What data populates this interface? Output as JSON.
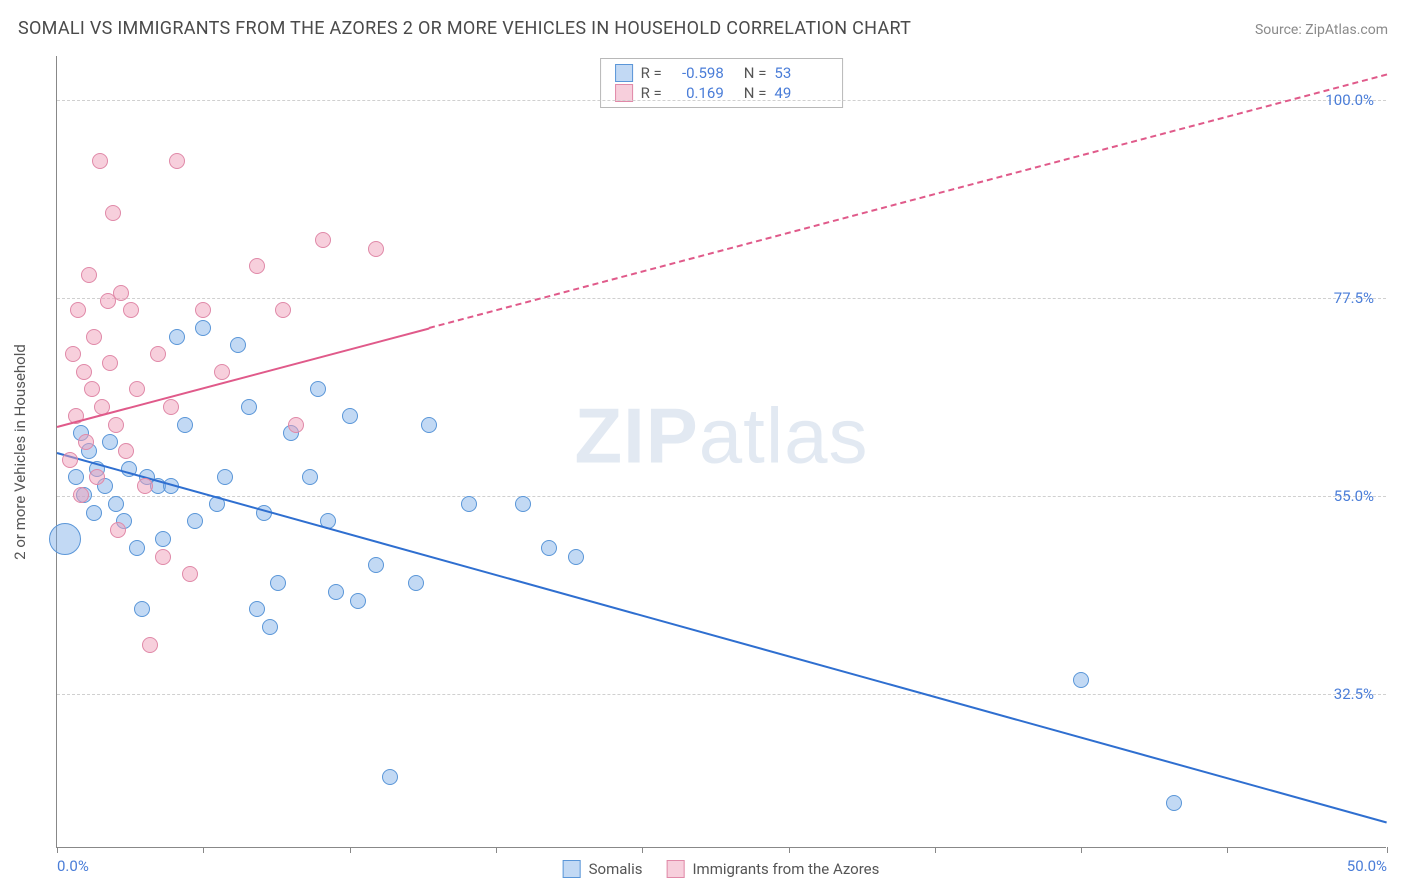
{
  "title": "SOMALI VS IMMIGRANTS FROM THE AZORES 2 OR MORE VEHICLES IN HOUSEHOLD CORRELATION CHART",
  "source": "Source: ZipAtlas.com",
  "watermark_a": "ZIP",
  "watermark_b": "atlas",
  "y_axis_label": "2 or more Vehicles in Household",
  "chart": {
    "type": "scatter",
    "xlim": [
      0,
      50
    ],
    "ylim": [
      15,
      105
    ],
    "background": "#ffffff",
    "grid_color": "#d0d0d0",
    "y_ticks": [
      {
        "v": 32.5,
        "label": "32.5%"
      },
      {
        "v": 55.0,
        "label": "55.0%"
      },
      {
        "v": 77.5,
        "label": "77.5%"
      },
      {
        "v": 100.0,
        "label": "100.0%"
      }
    ],
    "x_tick_values": [
      0,
      5.5,
      11,
      16.5,
      22,
      27.5,
      33,
      38.5,
      44,
      50
    ],
    "x_labels": [
      {
        "v": 0,
        "label": "0.0%"
      },
      {
        "v": 50,
        "label": "50.0%"
      }
    ],
    "series": [
      {
        "name": "Somalis",
        "fill": "rgba(120,170,230,0.45)",
        "stroke": "#5a96d8",
        "trend_color": "#2f6fd0",
        "r_value": "-0.598",
        "n_value": "53",
        "trend": {
          "x1": 0,
          "y1": 60,
          "x2": 50,
          "y2": 18
        },
        "points": [
          {
            "x": 0.3,
            "y": 50,
            "r": 16
          },
          {
            "x": 0.7,
            "y": 57,
            "r": 8
          },
          {
            "x": 0.9,
            "y": 62,
            "r": 8
          },
          {
            "x": 1.0,
            "y": 55,
            "r": 8
          },
          {
            "x": 1.2,
            "y": 60,
            "r": 8
          },
          {
            "x": 1.4,
            "y": 53,
            "r": 8
          },
          {
            "x": 1.5,
            "y": 58,
            "r": 8
          },
          {
            "x": 1.8,
            "y": 56,
            "r": 8
          },
          {
            "x": 2.0,
            "y": 61,
            "r": 8
          },
          {
            "x": 2.2,
            "y": 54,
            "r": 8
          },
          {
            "x": 2.5,
            "y": 52,
            "r": 8
          },
          {
            "x": 2.7,
            "y": 58,
            "r": 8
          },
          {
            "x": 3.0,
            "y": 49,
            "r": 8
          },
          {
            "x": 3.2,
            "y": 42,
            "r": 8
          },
          {
            "x": 3.4,
            "y": 57,
            "r": 8
          },
          {
            "x": 3.8,
            "y": 56,
            "r": 8
          },
          {
            "x": 4.0,
            "y": 50,
            "r": 8
          },
          {
            "x": 4.3,
            "y": 56,
            "r": 8
          },
          {
            "x": 4.5,
            "y": 73,
            "r": 8
          },
          {
            "x": 4.8,
            "y": 63,
            "r": 8
          },
          {
            "x": 5.2,
            "y": 52,
            "r": 8
          },
          {
            "x": 5.5,
            "y": 74,
            "r": 8
          },
          {
            "x": 6.0,
            "y": 54,
            "r": 8
          },
          {
            "x": 6.3,
            "y": 57,
            "r": 8
          },
          {
            "x": 6.8,
            "y": 72,
            "r": 8
          },
          {
            "x": 7.2,
            "y": 65,
            "r": 8
          },
          {
            "x": 7.5,
            "y": 42,
            "r": 8
          },
          {
            "x": 7.8,
            "y": 53,
            "r": 8
          },
          {
            "x": 8.0,
            "y": 40,
            "r": 8
          },
          {
            "x": 8.3,
            "y": 45,
            "r": 8
          },
          {
            "x": 8.8,
            "y": 62,
            "r": 8
          },
          {
            "x": 9.5,
            "y": 57,
            "r": 8
          },
          {
            "x": 9.8,
            "y": 67,
            "r": 8
          },
          {
            "x": 10.2,
            "y": 52,
            "r": 8
          },
          {
            "x": 10.5,
            "y": 44,
            "r": 8
          },
          {
            "x": 11.0,
            "y": 64,
            "r": 8
          },
          {
            "x": 11.3,
            "y": 43,
            "r": 8
          },
          {
            "x": 12.0,
            "y": 47,
            "r": 8
          },
          {
            "x": 12.5,
            "y": 23,
            "r": 8
          },
          {
            "x": 13.5,
            "y": 45,
            "r": 8
          },
          {
            "x": 14.0,
            "y": 63,
            "r": 8
          },
          {
            "x": 15.5,
            "y": 54,
            "r": 8
          },
          {
            "x": 17.5,
            "y": 54,
            "r": 8
          },
          {
            "x": 18.5,
            "y": 49,
            "r": 8
          },
          {
            "x": 19.5,
            "y": 48,
            "r": 8
          },
          {
            "x": 38.5,
            "y": 34,
            "r": 8
          },
          {
            "x": 42.0,
            "y": 20,
            "r": 8
          }
        ]
      },
      {
        "name": "Immigrants from the Azores",
        "fill": "rgba(240,160,185,0.5)",
        "stroke": "#e089a8",
        "trend_color": "#e05a8a",
        "r_value": "0.169",
        "n_value": "49",
        "trend": {
          "x1": 0,
          "y1": 63,
          "x2": 50,
          "y2": 103
        },
        "trend_dash_split_x": 14,
        "points": [
          {
            "x": 0.5,
            "y": 59,
            "r": 8
          },
          {
            "x": 0.6,
            "y": 71,
            "r": 8
          },
          {
            "x": 0.7,
            "y": 64,
            "r": 8
          },
          {
            "x": 0.8,
            "y": 76,
            "r": 8
          },
          {
            "x": 0.9,
            "y": 55,
            "r": 8
          },
          {
            "x": 1.0,
            "y": 69,
            "r": 8
          },
          {
            "x": 1.1,
            "y": 61,
            "r": 8
          },
          {
            "x": 1.2,
            "y": 80,
            "r": 8
          },
          {
            "x": 1.3,
            "y": 67,
            "r": 8
          },
          {
            "x": 1.4,
            "y": 73,
            "r": 8
          },
          {
            "x": 1.5,
            "y": 57,
            "r": 8
          },
          {
            "x": 1.6,
            "y": 93,
            "r": 8
          },
          {
            "x": 1.7,
            "y": 65,
            "r": 8
          },
          {
            "x": 1.9,
            "y": 77,
            "r": 8
          },
          {
            "x": 2.0,
            "y": 70,
            "r": 8
          },
          {
            "x": 2.1,
            "y": 87,
            "r": 8
          },
          {
            "x": 2.2,
            "y": 63,
            "r": 8
          },
          {
            "x": 2.3,
            "y": 51,
            "r": 8
          },
          {
            "x": 2.4,
            "y": 78,
            "r": 8
          },
          {
            "x": 2.6,
            "y": 60,
            "r": 8
          },
          {
            "x": 2.8,
            "y": 76,
            "r": 8
          },
          {
            "x": 3.0,
            "y": 67,
            "r": 8
          },
          {
            "x": 3.3,
            "y": 56,
            "r": 8
          },
          {
            "x": 3.5,
            "y": 38,
            "r": 8
          },
          {
            "x": 3.8,
            "y": 71,
            "r": 8
          },
          {
            "x": 4.0,
            "y": 48,
            "r": 8
          },
          {
            "x": 4.3,
            "y": 65,
            "r": 8
          },
          {
            "x": 4.5,
            "y": 93,
            "r": 8
          },
          {
            "x": 5.0,
            "y": 46,
            "r": 8
          },
          {
            "x": 5.5,
            "y": 76,
            "r": 8
          },
          {
            "x": 6.2,
            "y": 69,
            "r": 8
          },
          {
            "x": 7.5,
            "y": 81,
            "r": 8
          },
          {
            "x": 8.5,
            "y": 76,
            "r": 8
          },
          {
            "x": 9.0,
            "y": 63,
            "r": 8
          },
          {
            "x": 10.0,
            "y": 84,
            "r": 8
          },
          {
            "x": 12.0,
            "y": 83,
            "r": 8
          }
        ]
      }
    ]
  },
  "legend_bottom": [
    {
      "label": "Somalis",
      "series": 0
    },
    {
      "label": "Immigrants from the Azores",
      "series": 1
    }
  ]
}
